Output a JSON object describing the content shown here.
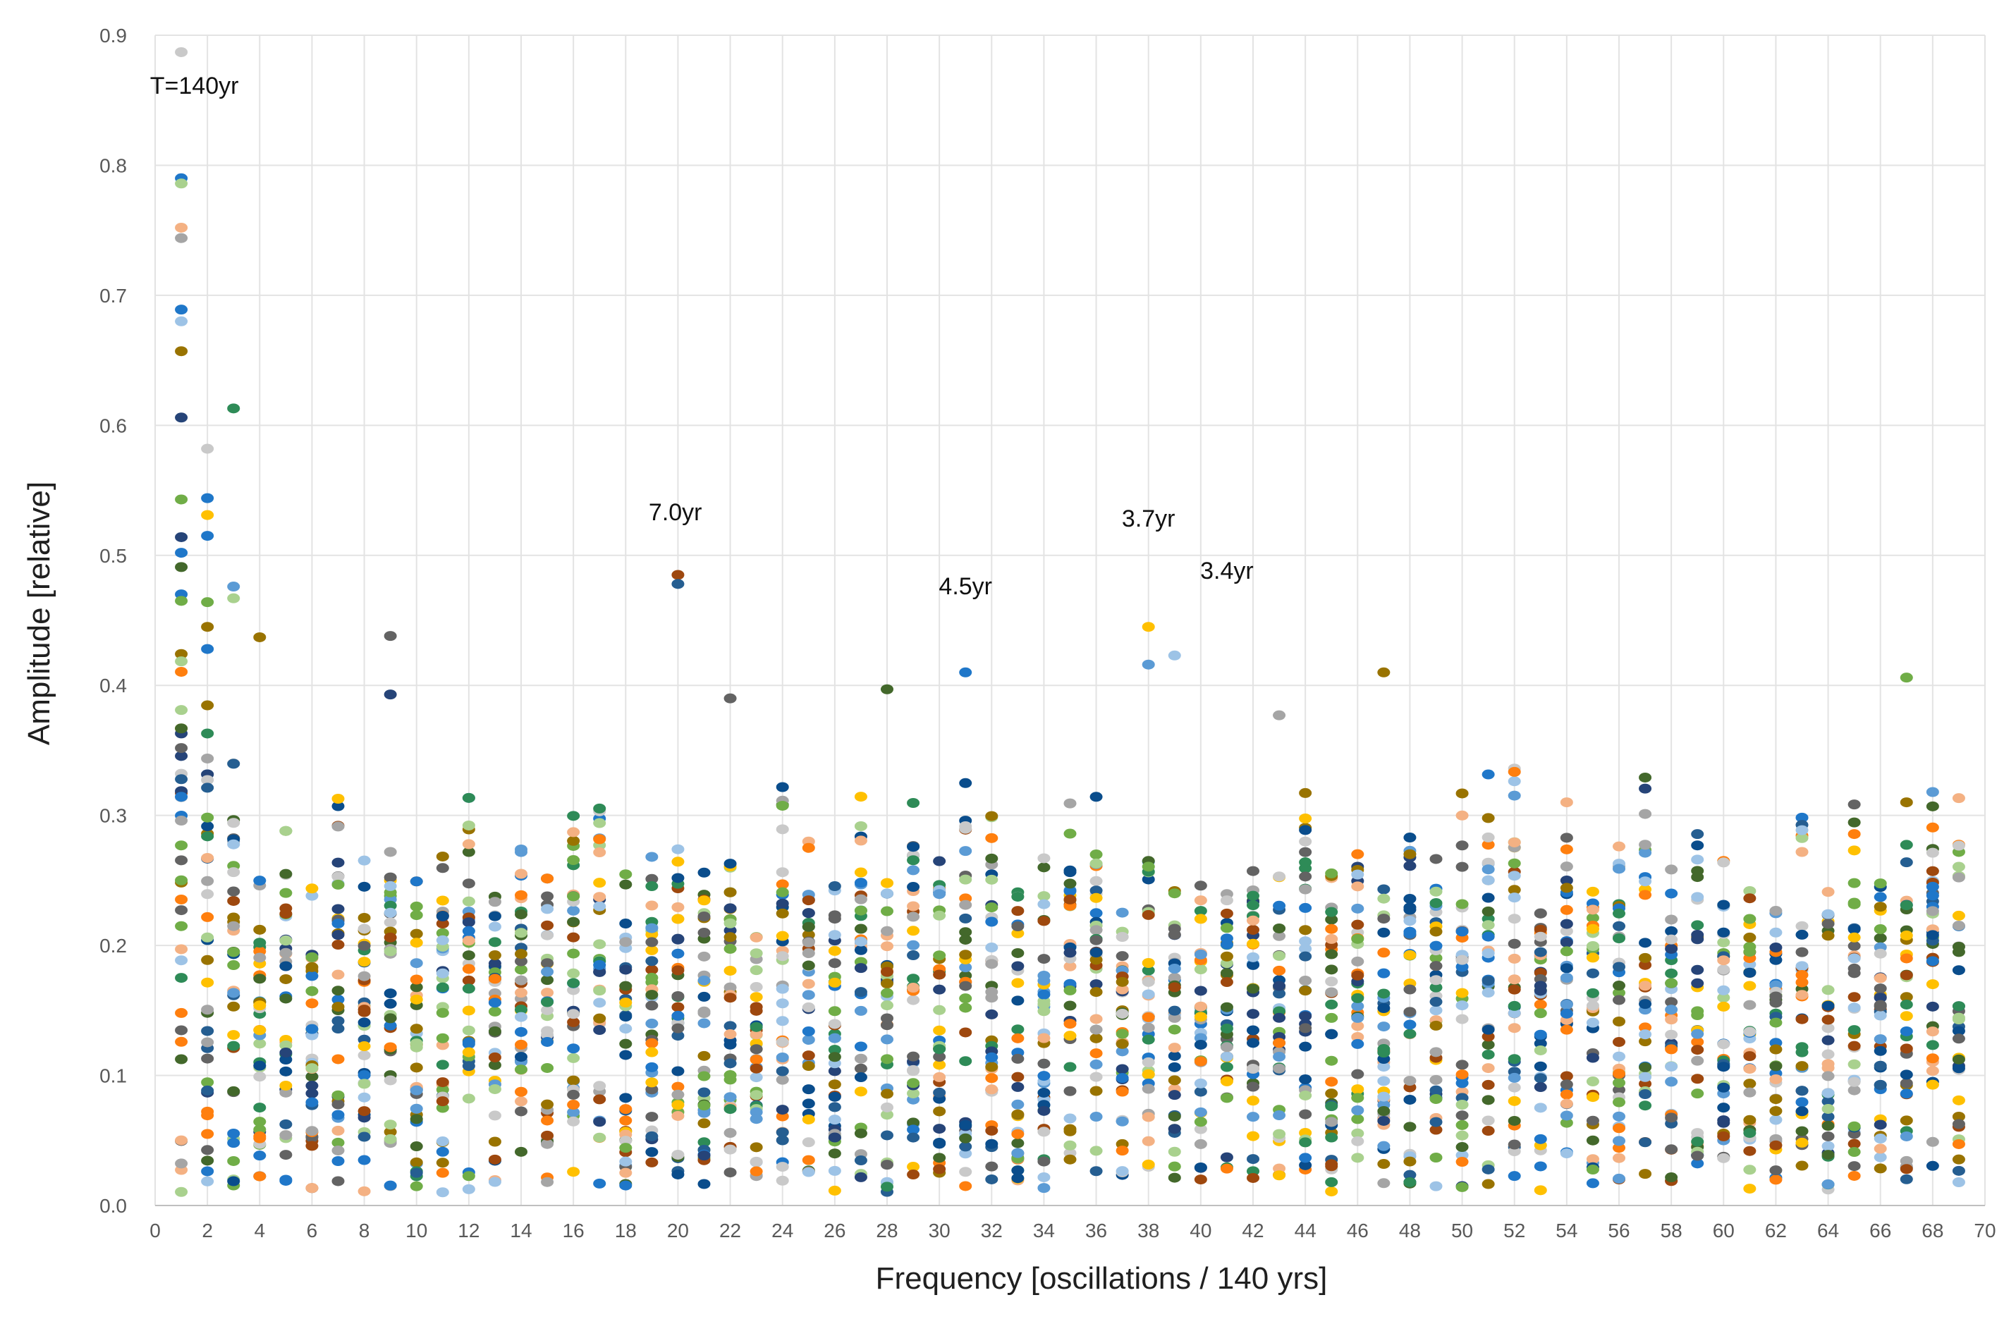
{
  "chart_data": {
    "type": "scatter",
    "title": "",
    "xlabel": "Frequency [oscillations / 140 yrs]",
    "ylabel": "Amplitude [relative]",
    "xlim": [
      0,
      70
    ],
    "ylim": [
      0,
      0.9
    ],
    "x_ticks": [
      "0",
      "2",
      "4",
      "6",
      "8",
      "10",
      "12",
      "14",
      "16",
      "18",
      "20",
      "22",
      "24",
      "26",
      "28",
      "30",
      "32",
      "34",
      "36",
      "38",
      "40",
      "42",
      "44",
      "46",
      "48",
      "50",
      "52",
      "54",
      "56",
      "58",
      "60",
      "62",
      "64",
      "66",
      "68",
      "70"
    ],
    "y_ticks": [
      "0.0",
      "0.1",
      "0.2",
      "0.3",
      "0.4",
      "0.5",
      "0.6",
      "0.7",
      "0.8",
      "0.9"
    ],
    "grid": true,
    "palette": [
      "#1f77c9",
      "#ff7f0e",
      "#a5a5a5",
      "#ffc000",
      "#5b9bd5",
      "#70ad47",
      "#264478",
      "#9e480e",
      "#636363",
      "#997300",
      "#255e91",
      "#43682b",
      "#f4b183",
      "#a9d18e",
      "#9dc3e6",
      "#c9c9c9",
      "#0a4d8c",
      "#2e8b57"
    ],
    "n_points_per_frequency": 36,
    "scatter_seed": 7,
    "highlighted_points": [
      {
        "x": 1,
        "y": 0.887,
        "color": "#c9c9c9"
      },
      {
        "x": 1,
        "y": 0.79,
        "color": "#1f77c9"
      },
      {
        "x": 1,
        "y": 0.786,
        "color": "#a9d18e"
      },
      {
        "x": 1,
        "y": 0.752,
        "color": "#f4b183"
      },
      {
        "x": 1,
        "y": 0.744,
        "color": "#a5a5a5"
      },
      {
        "x": 1,
        "y": 0.689,
        "color": "#1f77c9"
      },
      {
        "x": 1,
        "y": 0.68,
        "color": "#9dc3e6"
      },
      {
        "x": 1,
        "y": 0.657,
        "color": "#997300"
      },
      {
        "x": 1,
        "y": 0.606,
        "color": "#264478"
      },
      {
        "x": 1,
        "y": 0.543,
        "color": "#70ad47"
      },
      {
        "x": 1,
        "y": 0.514,
        "color": "#264478"
      },
      {
        "x": 1,
        "y": 0.502,
        "color": "#1f77c9"
      },
      {
        "x": 1,
        "y": 0.491,
        "color": "#43682b"
      },
      {
        "x": 1,
        "y": 0.47,
        "color": "#1f77c9"
      },
      {
        "x": 1,
        "y": 0.465,
        "color": "#70ad47"
      },
      {
        "x": 2,
        "y": 0.582,
        "color": "#c9c9c9"
      },
      {
        "x": 2,
        "y": 0.544,
        "color": "#1f77c9"
      },
      {
        "x": 2,
        "y": 0.531,
        "color": "#ffc000"
      },
      {
        "x": 2,
        "y": 0.515,
        "color": "#1f77c9"
      },
      {
        "x": 2,
        "y": 0.464,
        "color": "#70ad47"
      },
      {
        "x": 2,
        "y": 0.445,
        "color": "#997300"
      },
      {
        "x": 2,
        "y": 0.428,
        "color": "#1f77c9"
      },
      {
        "x": 3,
        "y": 0.613,
        "color": "#2e8b57"
      },
      {
        "x": 3,
        "y": 0.476,
        "color": "#5b9bd5"
      },
      {
        "x": 3,
        "y": 0.467,
        "color": "#a9d18e"
      },
      {
        "x": 4,
        "y": 0.437,
        "color": "#997300"
      },
      {
        "x": 9,
        "y": 0.438,
        "color": "#636363"
      },
      {
        "x": 9,
        "y": 0.393,
        "color": "#264478"
      },
      {
        "x": 20,
        "y": 0.485,
        "color": "#9e480e"
      },
      {
        "x": 20,
        "y": 0.478,
        "color": "#255e91"
      },
      {
        "x": 22,
        "y": 0.39,
        "color": "#636363"
      },
      {
        "x": 28,
        "y": 0.397,
        "color": "#43682b"
      },
      {
        "x": 31,
        "y": 0.41,
        "color": "#1f77c9"
      },
      {
        "x": 38,
        "y": 0.445,
        "color": "#ffc000"
      },
      {
        "x": 38,
        "y": 0.416,
        "color": "#5b9bd5"
      },
      {
        "x": 39,
        "y": 0.423,
        "color": "#9dc3e6"
      },
      {
        "x": 43,
        "y": 0.377,
        "color": "#a5a5a5"
      },
      {
        "x": 47,
        "y": 0.41,
        "color": "#997300"
      },
      {
        "x": 67,
        "y": 0.406,
        "color": "#70ad47"
      }
    ],
    "annotations": [
      {
        "text": "T=140yr",
        "x": 1.5,
        "y": 0.855
      },
      {
        "text": "7.0yr",
        "x": 19.9,
        "y": 0.527
      },
      {
        "text": "4.5yr",
        "x": 31.0,
        "y": 0.47
      },
      {
        "text": "3.7yr",
        "x": 38.0,
        "y": 0.522
      },
      {
        "text": "3.4yr",
        "x": 41.0,
        "y": 0.482
      }
    ]
  }
}
